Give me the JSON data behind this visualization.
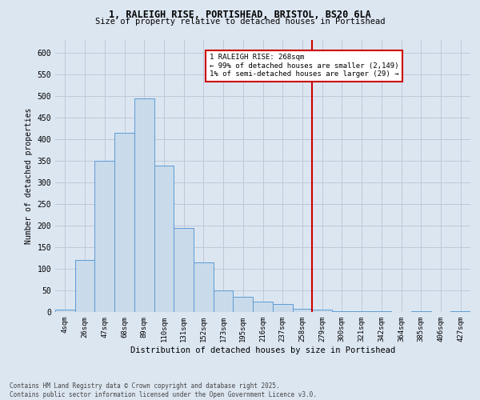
{
  "title_line1": "1, RALEIGH RISE, PORTISHEAD, BRISTOL, BS20 6LA",
  "title_line2": "Size of property relative to detached houses in Portishead",
  "xlabel": "Distribution of detached houses by size in Portishead",
  "ylabel": "Number of detached properties",
  "categories": [
    "4sqm",
    "26sqm",
    "47sqm",
    "68sqm",
    "89sqm",
    "110sqm",
    "131sqm",
    "152sqm",
    "173sqm",
    "195sqm",
    "216sqm",
    "237sqm",
    "258sqm",
    "279sqm",
    "300sqm",
    "321sqm",
    "342sqm",
    "364sqm",
    "385sqm",
    "406sqm",
    "427sqm"
  ],
  "values": [
    5,
    120,
    350,
    415,
    495,
    340,
    195,
    115,
    50,
    35,
    25,
    18,
    8,
    6,
    2,
    1,
    1,
    0,
    1,
    0,
    2
  ],
  "bar_color": "#c9daea",
  "bar_edge_color": "#5b9bd5",
  "vline_x": 12.5,
  "vline_label": "1 RALEIGH RISE: 268sqm",
  "annotation_line2": "← 99% of detached houses are smaller (2,149)",
  "annotation_line3": "1% of semi-detached houses are larger (29) →",
  "annotation_box_color": "#ffffff",
  "annotation_box_edge_color": "#cc0000",
  "vline_color": "#cc0000",
  "grid_color": "#c0c8d8",
  "background_color": "#dce6f1",
  "ylim": [
    0,
    630
  ],
  "yticks": [
    0,
    50,
    100,
    150,
    200,
    250,
    300,
    350,
    400,
    450,
    500,
    550,
    600
  ],
  "footnote_line1": "Contains HM Land Registry data © Crown copyright and database right 2025.",
  "footnote_line2": "Contains public sector information licensed under the Open Government Licence v3.0."
}
